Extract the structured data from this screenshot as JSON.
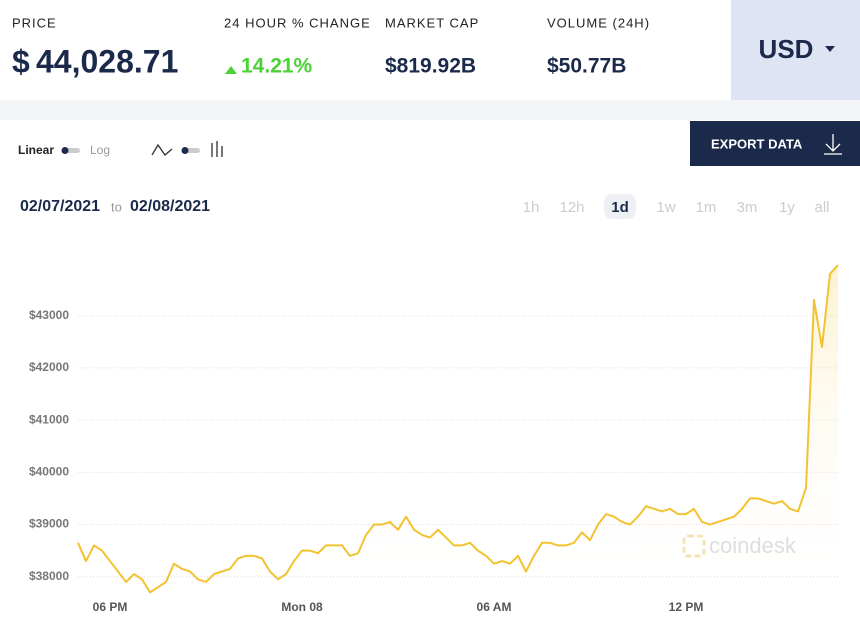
{
  "stats": [
    {
      "label": "PRICE",
      "symbol": "$",
      "value": "44,028.71"
    },
    {
      "label": "24 HOUR % CHANGE",
      "value": "14.21%"
    },
    {
      "label": "MARKET CAP",
      "value": "$819.92B"
    },
    {
      "label": "VOLUME (24H)",
      "value": "$50.77B"
    }
  ],
  "currency": "USD",
  "controls": {
    "linear": "Linear",
    "log": "Log",
    "export": "EXPORT DATA"
  },
  "date_range": {
    "from": "02/07/2021",
    "to_word": "to",
    "to": "02/08/2021"
  },
  "ranges": [
    "1h",
    "12h",
    "1d",
    "1w",
    "1m",
    "3m",
    "1y",
    "all"
  ],
  "active_range": 2,
  "watermark": "coindesk",
  "chart_data": {
    "type": "line",
    "color": "#f2c230",
    "x": [
      0,
      0.25,
      0.5,
      0.75,
      1,
      1.25,
      1.5,
      1.75,
      2,
      2.25,
      2.5,
      2.75,
      3,
      3.25,
      3.5,
      3.75,
      4,
      4.25,
      4.5,
      4.75,
      5,
      5.25,
      5.5,
      5.75,
      6,
      6.25,
      6.5,
      6.75,
      7,
      7.25,
      7.5,
      7.75,
      8,
      8.25,
      8.5,
      8.75,
      9,
      9.25,
      9.5,
      9.75,
      10,
      10.25,
      10.5,
      10.75,
      11,
      11.25,
      11.5,
      11.75,
      12,
      12.25,
      12.5,
      12.75,
      13,
      13.25,
      13.5,
      13.75,
      14,
      14.25,
      14.5,
      14.75,
      15,
      15.25,
      15.5,
      15.75,
      16,
      16.25,
      16.5,
      16.75,
      17,
      17.25,
      17.5,
      17.75,
      18,
      18.25,
      18.5,
      18.75,
      19,
      19.25,
      19.5,
      19.75,
      20,
      20.25,
      20.5,
      20.75,
      21,
      21.25,
      21.5,
      21.75,
      22,
      22.25,
      22.5,
      22.75,
      23,
      23.25,
      23.5,
      23.75
    ],
    "values": [
      38650,
      38300,
      38600,
      38500,
      38300,
      38100,
      37900,
      38050,
      37950,
      37700,
      37800,
      37900,
      38250,
      38150,
      38100,
      37950,
      37900,
      38050,
      38100,
      38150,
      38350,
      38400,
      38400,
      38350,
      38100,
      37950,
      38050,
      38300,
      38500,
      38500,
      38450,
      38600,
      38600,
      38600,
      38400,
      38450,
      38800,
      39000,
      39000,
      39050,
      38900,
      39150,
      38900,
      38800,
      38750,
      38900,
      38750,
      38600,
      38600,
      38650,
      38500,
      38400,
      38250,
      38300,
      38250,
      38400,
      38100,
      38400,
      38650,
      38650,
      38600,
      38600,
      38650,
      38850,
      38700,
      39000,
      39200,
      39150,
      39050,
      39000,
      39150,
      39350,
      39300,
      39250,
      39300,
      39200,
      39200,
      39300,
      39050,
      39000,
      39050,
      39100,
      39150,
      39300,
      39500,
      39500,
      39450,
      39400,
      39450,
      39300,
      39250,
      39700,
      43300,
      42400,
      43800,
      43970
    ],
    "xlim": [
      0,
      23.75
    ],
    "xticks": [
      {
        "value": 1,
        "label": "06 PM"
      },
      {
        "value": 7,
        "label": "Mon 08"
      },
      {
        "value": 13,
        "label": "06 AM"
      },
      {
        "value": 19,
        "label": "12 PM"
      }
    ],
    "ylim": [
      37650,
      44450
    ],
    "yticks": [
      {
        "value": 38000,
        "label": "$38000"
      },
      {
        "value": 39000,
        "label": "$39000"
      },
      {
        "value": 40000,
        "label": "$40000"
      },
      {
        "value": 41000,
        "label": "$41000"
      },
      {
        "value": 42000,
        "label": "$42000"
      },
      {
        "value": 43000,
        "label": "$43000"
      }
    ],
    "grid": true
  }
}
